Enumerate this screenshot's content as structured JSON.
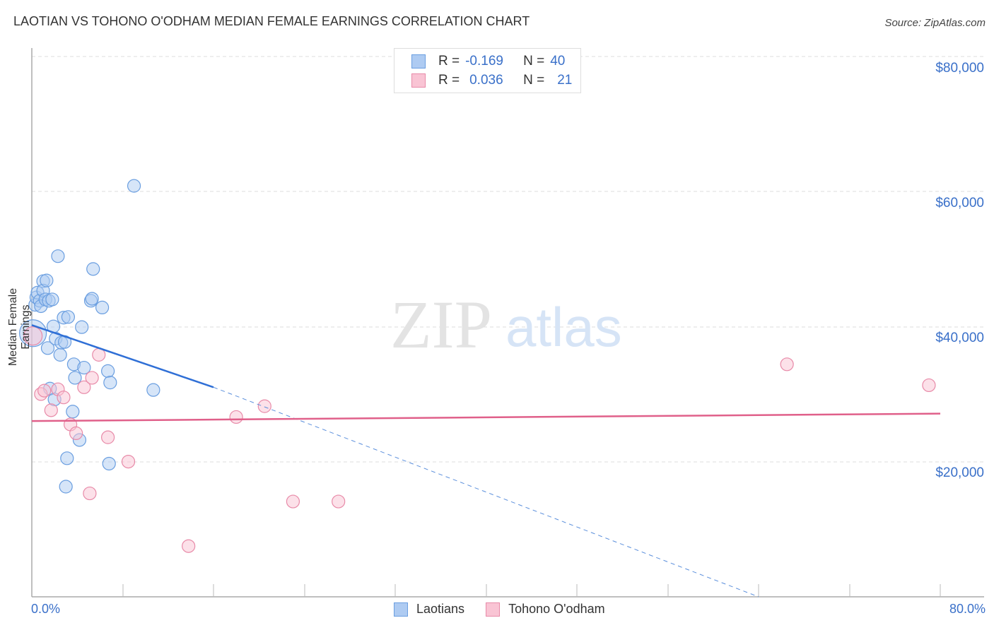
{
  "header": {
    "title": "LAOTIAN VS TOHONO O'ODHAM MEDIAN FEMALE EARNINGS CORRELATION CHART",
    "source": "Source: ZipAtlas.com"
  },
  "legend": {
    "rows": [
      {
        "r_label": "R =",
        "r_value": "-0.169",
        "n_label": "N =",
        "n_value": "40",
        "color": "#aecbf2",
        "border": "#6a9ee0"
      },
      {
        "r_label": "R =",
        "r_value": "0.036",
        "n_label": "N =",
        "n_value": "21",
        "color": "#f9c4d4",
        "border": "#e88aa8"
      }
    ]
  },
  "bottom_legend": [
    {
      "label": "Laotians",
      "color": "#aecbf2",
      "border": "#6a9ee0"
    },
    {
      "label": "Tohono O'odham",
      "color": "#f9c4d4",
      "border": "#e88aa8"
    }
  ],
  "axes": {
    "ylabel": "Median Female Earnings",
    "x_min_label": "0.0%",
    "x_max_label": "80.0%",
    "y_ticks": [
      "$80,000",
      "$60,000",
      "$40,000",
      "$20,000"
    ]
  },
  "watermark": {
    "zip": "ZIP",
    "atlas": "atlas"
  },
  "chart_data": {
    "type": "scatter",
    "title": "LAOTIAN VS TOHONO O'ODHAM MEDIAN FEMALE EARNINGS CORRELATION CHART",
    "xlabel": "",
    "ylabel": "Median Female Earnings",
    "xlim": [
      0,
      80
    ],
    "ylim": [
      0,
      82000
    ],
    "x_tick_labels": [
      "0.0%",
      "80.0%"
    ],
    "y_tick_labels": [
      "$20,000",
      "$40,000",
      "$60,000",
      "$80,000"
    ],
    "grid": true,
    "legend_position": "top-center",
    "series": [
      {
        "name": "Laotians",
        "color": "#6a9ee0",
        "R": -0.169,
        "N": 40,
        "points": [
          [
            0.1,
            39000
          ],
          [
            0.3,
            43200
          ],
          [
            0.4,
            44300
          ],
          [
            0.5,
            45000
          ],
          [
            0.7,
            43800
          ],
          [
            0.8,
            43000
          ],
          [
            1.0,
            46700
          ],
          [
            1.0,
            45300
          ],
          [
            1.2,
            44000
          ],
          [
            1.3,
            46800
          ],
          [
            1.4,
            36800
          ],
          [
            1.5,
            43800
          ],
          [
            1.6,
            30800
          ],
          [
            1.8,
            44000
          ],
          [
            1.9,
            40000
          ],
          [
            2.0,
            29200
          ],
          [
            2.1,
            38200
          ],
          [
            2.3,
            50400
          ],
          [
            2.5,
            35800
          ],
          [
            2.6,
            37600
          ],
          [
            2.8,
            41300
          ],
          [
            2.9,
            37700
          ],
          [
            3.1,
            20500
          ],
          [
            3.0,
            16300
          ],
          [
            3.2,
            41400
          ],
          [
            3.6,
            27400
          ],
          [
            3.7,
            34400
          ],
          [
            3.8,
            32400
          ],
          [
            4.2,
            23200
          ],
          [
            4.4,
            39900
          ],
          [
            4.6,
            33900
          ],
          [
            5.2,
            43800
          ],
          [
            5.3,
            44100
          ],
          [
            5.4,
            48500
          ],
          [
            6.2,
            42800
          ],
          [
            6.7,
            33400
          ],
          [
            6.8,
            19700
          ],
          [
            6.9,
            31700
          ],
          [
            9.0,
            60800
          ],
          [
            10.7,
            30600
          ]
        ],
        "trend": {
          "x0": 0,
          "y0": 40200,
          "x1": 16,
          "y1": 31000,
          "extended_to": [
            64,
            0
          ]
        }
      },
      {
        "name": "Tohono O'odham",
        "color": "#e88aa8",
        "R": 0.036,
        "N": 21,
        "points": [
          [
            0.1,
            38600
          ],
          [
            0.8,
            30000
          ],
          [
            1.1,
            30500
          ],
          [
            1.7,
            27600
          ],
          [
            2.3,
            30700
          ],
          [
            2.8,
            29500
          ],
          [
            3.4,
            25500
          ],
          [
            3.9,
            24200
          ],
          [
            4.6,
            31000
          ],
          [
            5.1,
            15300
          ],
          [
            5.3,
            32400
          ],
          [
            5.9,
            35800
          ],
          [
            6.7,
            23600
          ],
          [
            8.5,
            20000
          ],
          [
            13.8,
            7500
          ],
          [
            18.0,
            26600
          ],
          [
            20.5,
            28200
          ],
          [
            23.0,
            14100
          ],
          [
            27.0,
            14100
          ],
          [
            66.5,
            34400
          ],
          [
            79.0,
            31300
          ]
        ],
        "trend": {
          "x0": 0,
          "y0": 26000,
          "x1": 80,
          "y1": 27100
        }
      }
    ]
  }
}
